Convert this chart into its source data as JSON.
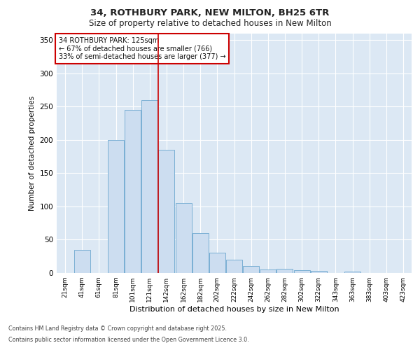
{
  "title1": "34, ROTHBURY PARK, NEW MILTON, BH25 6TR",
  "title2": "Size of property relative to detached houses in New Milton",
  "xlabel": "Distribution of detached houses by size in New Milton",
  "ylabel": "Number of detached properties",
  "bar_labels": [
    "21sqm",
    "41sqm",
    "61sqm",
    "81sqm",
    "101sqm",
    "121sqm",
    "142sqm",
    "162sqm",
    "182sqm",
    "202sqm",
    "222sqm",
    "242sqm",
    "262sqm",
    "282sqm",
    "302sqm",
    "322sqm",
    "343sqm",
    "363sqm",
    "383sqm",
    "403sqm",
    "423sqm"
  ],
  "bar_values": [
    0,
    35,
    0,
    200,
    245,
    260,
    185,
    105,
    60,
    30,
    20,
    10,
    5,
    6,
    4,
    3,
    0,
    2,
    0,
    0,
    0
  ],
  "bar_color": "#ccddf0",
  "bar_edge_color": "#7aafd4",
  "ylim": [
    0,
    360
  ],
  "yticks": [
    0,
    50,
    100,
    150,
    200,
    250,
    300,
    350
  ],
  "property_line_color": "#cc0000",
  "annotation_title": "34 ROTHBURY PARK: 125sqm",
  "annotation_line1": "← 67% of detached houses are smaller (766)",
  "annotation_line2": "33% of semi-detached houses are larger (377) →",
  "annotation_box_edge_color": "#cc0000",
  "fig_bg_color": "#ffffff",
  "plot_bg_color": "#dce8f4",
  "footer1": "Contains HM Land Registry data © Crown copyright and database right 2025.",
  "footer2": "Contains public sector information licensed under the Open Government Licence 3.0."
}
